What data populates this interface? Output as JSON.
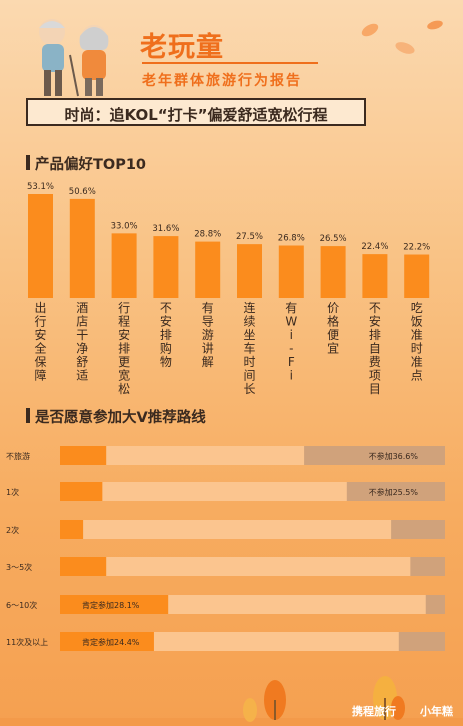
{
  "header": {
    "title": "老玩童",
    "subtitle": "老年群体旅游行为报告",
    "banner": "时尚：追KOL“打卡”偏爱舒适宽松行程"
  },
  "section1": {
    "title": "产品偏好TOP10"
  },
  "section2": {
    "title": "是否愿意参加大V推荐路线"
  },
  "footer": {
    "brand1": "携程旅行",
    "brand2": "小年糕"
  },
  "colors": {
    "bar": "#fb8c1d",
    "track": "#fbc58f",
    "grey": "#d0a27b",
    "text": "#3b2a1f"
  },
  "chart_data": [
    {
      "type": "bar",
      "title": "产品偏好TOP10",
      "categories": [
        "出行安全保障",
        "酒店干净舒适",
        "行程安排更宽松",
        "不安排购物",
        "有导游讲解",
        "连续坐车时间长",
        "有Wi-Fi",
        "价格便宜",
        "不安排自费项目",
        "吃饭准时准点"
      ],
      "values": [
        53.1,
        50.6,
        33.0,
        31.6,
        28.8,
        27.5,
        26.8,
        26.5,
        22.4,
        22.2
      ],
      "value_labels": [
        "53.1%",
        "50.6%",
        "33.0%",
        "31.6%",
        "28.8%",
        "27.5%",
        "26.8%",
        "26.5%",
        "22.4%",
        "22.2%"
      ],
      "ylim": [
        0,
        60
      ]
    },
    {
      "type": "bar",
      "orientation": "horizontal-stacked",
      "title": "是否愿意参加大V推荐路线",
      "categories": [
        "不旅游",
        "1次",
        "2次",
        "3～5次",
        "6～10次",
        "11次及以上"
      ],
      "series": [
        {
          "name": "肯定参加",
          "values": [
            0.12,
            0.11,
            0.06,
            0.12,
            0.281,
            0.244
          ]
        },
        {
          "name": "不参加",
          "values": [
            0.366,
            0.255,
            0.14,
            0.09,
            0.05,
            0.12
          ]
        }
      ],
      "labels": [
        {
          "category": "不旅游",
          "text": "不参加36.6%",
          "side": "right"
        },
        {
          "category": "1次",
          "text": "不参加25.5%",
          "side": "right"
        },
        {
          "category": "6～10次",
          "text": "肯定参加28.1%",
          "side": "left"
        },
        {
          "category": "11次及以上",
          "text": "肯定参加24.4%",
          "side": "left"
        }
      ]
    }
  ]
}
